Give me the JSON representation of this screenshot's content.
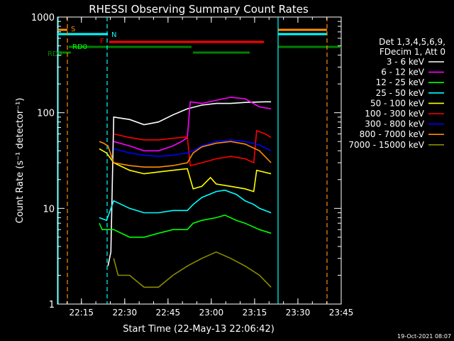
{
  "chart_data": {
    "type": "line",
    "title": "RHESSI Observing Summary Count Rates",
    "xlabel": "Start Time (22-May-13 22:06:42)",
    "ylabel": "Count Rate (s⁻¹ detector⁻¹)",
    "y_scale": "log",
    "ylim": [
      1,
      1000
    ],
    "xlim_minutes": [
      0,
      98.3
    ],
    "x_ticks": [
      {
        "label": "22:15",
        "t": 8.3
      },
      {
        "label": "22:30",
        "t": 23.3
      },
      {
        "label": "22:45",
        "t": 38.3
      },
      {
        "label": "23:00",
        "t": 53.3
      },
      {
        "label": "23:15",
        "t": 68.3
      },
      {
        "label": "23:30",
        "t": 83.3
      },
      {
        "label": "23:45",
        "t": 98.3
      }
    ],
    "y_ticks": [
      {
        "label": "1",
        "v": 1
      },
      {
        "label": "10",
        "v": 10
      },
      {
        "label": "100",
        "v": 100
      },
      {
        "label": "1000",
        "v": 1000
      }
    ],
    "legend_header": [
      "Det 1,3,4,5,6,9,",
      "FDecim 1, Att 0"
    ],
    "series": [
      {
        "name": "3 - 6 keV",
        "color": "#ffffff",
        "points": [
          [
            17.5,
            2.5
          ],
          [
            18.5,
            3.5
          ],
          [
            19.5,
            90
          ],
          [
            25,
            85
          ],
          [
            30,
            75
          ],
          [
            35,
            80
          ],
          [
            40,
            95
          ],
          [
            45,
            110
          ],
          [
            50,
            120
          ],
          [
            55,
            125
          ],
          [
            60,
            125
          ],
          [
            65,
            128
          ],
          [
            72,
            130
          ],
          [
            74,
            130
          ]
        ]
      },
      {
        "name": "6 - 12 keV",
        "color": "#ff00ff",
        "points": [
          [
            19.5,
            50
          ],
          [
            25,
            45
          ],
          [
            30,
            40
          ],
          [
            35,
            40
          ],
          [
            40,
            45
          ],
          [
            43,
            50
          ],
          [
            45,
            55
          ],
          [
            46,
            130
          ],
          [
            50,
            125
          ],
          [
            55,
            135
          ],
          [
            60,
            145
          ],
          [
            65,
            140
          ],
          [
            70,
            115
          ],
          [
            74,
            110
          ]
        ]
      },
      {
        "name": "12 - 25 keV",
        "color": "#00ff00",
        "points": [
          [
            14.5,
            7
          ],
          [
            15.5,
            6
          ],
          [
            17,
            6
          ],
          [
            19.5,
            6
          ],
          [
            25,
            5
          ],
          [
            30,
            5
          ],
          [
            35,
            5.5
          ],
          [
            40,
            6
          ],
          [
            45,
            6
          ],
          [
            47,
            7
          ],
          [
            50,
            7.5
          ],
          [
            55,
            8
          ],
          [
            58,
            8.5
          ],
          [
            62,
            7.5
          ],
          [
            65,
            7
          ],
          [
            70,
            6
          ],
          [
            74,
            5.5
          ]
        ]
      },
      {
        "name": "25 - 50 keV",
        "color": "#00ffff",
        "points": [
          [
            14.5,
            8
          ],
          [
            17,
            7.5
          ],
          [
            19.5,
            12
          ],
          [
            25,
            10
          ],
          [
            30,
            9
          ],
          [
            35,
            9
          ],
          [
            40,
            9.5
          ],
          [
            45,
            9.5
          ],
          [
            47,
            11
          ],
          [
            50,
            13
          ],
          [
            55,
            15
          ],
          [
            58,
            15.5
          ],
          [
            62,
            14
          ],
          [
            65,
            12
          ],
          [
            68,
            11
          ],
          [
            70,
            10
          ],
          [
            74,
            9
          ]
        ]
      },
      {
        "name": "50 - 100 keV",
        "color": "#ffff00",
        "points": [
          [
            14.5,
            42
          ],
          [
            17,
            38
          ],
          [
            19.5,
            30
          ],
          [
            25,
            25
          ],
          [
            30,
            23
          ],
          [
            35,
            24
          ],
          [
            40,
            25
          ],
          [
            45,
            26
          ],
          [
            47,
            16
          ],
          [
            50,
            17
          ],
          [
            53,
            21
          ],
          [
            55,
            18
          ],
          [
            60,
            17
          ],
          [
            65,
            16
          ],
          [
            68,
            15
          ],
          [
            69,
            25
          ],
          [
            74,
            23
          ]
        ]
      },
      {
        "name": "100 - 300 keV",
        "color": "#ff0000",
        "points": [
          [
            19.5,
            60
          ],
          [
            25,
            55
          ],
          [
            30,
            52
          ],
          [
            35,
            52
          ],
          [
            40,
            54
          ],
          [
            45,
            56
          ],
          [
            46,
            28
          ],
          [
            50,
            30
          ],
          [
            55,
            33
          ],
          [
            60,
            35
          ],
          [
            65,
            33
          ],
          [
            68,
            30
          ],
          [
            69,
            65
          ],
          [
            72,
            60
          ],
          [
            74,
            55
          ]
        ]
      },
      {
        "name": "300 - 800 keV",
        "color": "#0000ff",
        "points": [
          [
            19.5,
            42
          ],
          [
            25,
            38
          ],
          [
            30,
            36
          ],
          [
            35,
            35
          ],
          [
            40,
            36
          ],
          [
            45,
            38
          ],
          [
            47,
            40
          ],
          [
            50,
            45
          ],
          [
            55,
            50
          ],
          [
            60,
            52
          ],
          [
            65,
            50
          ],
          [
            70,
            46
          ],
          [
            74,
            40
          ]
        ]
      },
      {
        "name": "800 - 7000 keV",
        "color": "#ff8c00",
        "points": [
          [
            14.5,
            50
          ],
          [
            16,
            48
          ],
          [
            17.5,
            45
          ],
          [
            19.5,
            30
          ],
          [
            25,
            28
          ],
          [
            30,
            27
          ],
          [
            35,
            27
          ],
          [
            40,
            28
          ],
          [
            45,
            30
          ],
          [
            47,
            38
          ],
          [
            50,
            44
          ],
          [
            55,
            48
          ],
          [
            60,
            50
          ],
          [
            65,
            47
          ],
          [
            70,
            40
          ],
          [
            74,
            30
          ]
        ]
      },
      {
        "name": "7000 - 15000 keV",
        "color": "#8b8b00",
        "points": [
          [
            19.5,
            3
          ],
          [
            21,
            2
          ],
          [
            25,
            2
          ],
          [
            30,
            1.5
          ],
          [
            35,
            1.5
          ],
          [
            40,
            2
          ],
          [
            45,
            2.5
          ],
          [
            50,
            3
          ],
          [
            55,
            3.5
          ],
          [
            60,
            3
          ],
          [
            65,
            2.5
          ],
          [
            70,
            2
          ],
          [
            74,
            1.5
          ]
        ]
      }
    ],
    "flags": [
      {
        "label": "S",
        "color": "#ff8c00"
      },
      {
        "label": "N",
        "color": "#00ffff"
      },
      {
        "label": "F",
        "color": "#ff0000"
      },
      {
        "label": "RD0",
        "color": "#00ff00"
      },
      {
        "label": "RDS",
        "color": "#008000"
      }
    ],
    "timestamp": "19-Oct-2021 08:07",
    "grid": false,
    "legend_position": "right"
  }
}
